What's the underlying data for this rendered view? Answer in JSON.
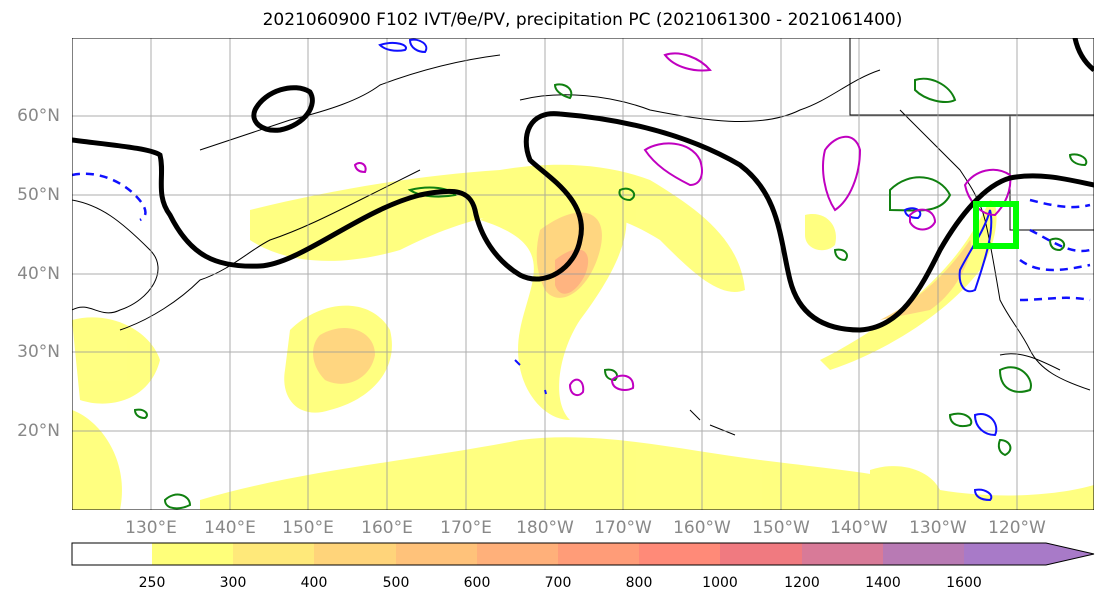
{
  "title": "2021060900 F102 IVT/θe/PV, precipitation PC (2021061300 - 2021061400)",
  "map": {
    "lat_labels": [
      "60°N",
      "50°N",
      "40°N",
      "30°N",
      "20°N"
    ],
    "lon_labels": [
      "130°E",
      "140°E",
      "150°E",
      "160°E",
      "170°E",
      "180°W",
      "170°W",
      "160°W",
      "150°W",
      "140°W",
      "130°W",
      "120°W"
    ],
    "box_color": "#00ff00",
    "contour_colors": {
      "black": "#000000",
      "magenta": "#c000c0",
      "blue": "#1010ff",
      "green": "#108010"
    }
  },
  "colorbar": {
    "ticks": [
      "250",
      "300",
      "400",
      "500",
      "600",
      "700",
      "800",
      "1000",
      "1200",
      "1400",
      "1600"
    ],
    "colors": [
      "#ffffff",
      "#ffff7a",
      "#ffe97a",
      "#ffd47a",
      "#ffc27a",
      "#ffb07a",
      "#ff9c78",
      "#ff8a78",
      "#f07a80",
      "#d87a98",
      "#b87ab4",
      "#a87ac8"
    ]
  }
}
